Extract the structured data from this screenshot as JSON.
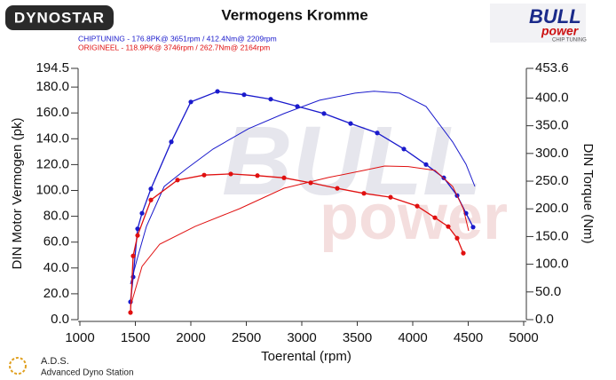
{
  "chart_data": {
    "type": "line",
    "title": "Vermogens Kromme",
    "legend": [
      {
        "text": "CHIPTUNING  - 176.8PK@ 3651rpm / 412.4Nm@ 2209rpm",
        "color": "#1a1acc"
      },
      {
        "text": "ORIGINEEL  - 118.9PK@ 3746rpm / 262.7Nm@ 2164rpm",
        "color": "#e01010"
      }
    ],
    "x_label": "Toerental (rpm)",
    "y_label": "DIN Motor Vermogen (pk)",
    "y2_label": "DIN Torque (Nm)",
    "xlim": [
      1000,
      5000
    ],
    "xticks": [
      1000,
      1500,
      2000,
      2500,
      3000,
      3500,
      4000,
      4500,
      5000
    ],
    "ylim": [
      0,
      194.5
    ],
    "yticks": [
      {
        "value": 0,
        "label": "0.0"
      },
      {
        "value": 20,
        "label": "20.0"
      },
      {
        "value": 40,
        "label": "40.0"
      },
      {
        "value": 60,
        "label": "60.0"
      },
      {
        "value": 80,
        "label": "80.0"
      },
      {
        "value": 100,
        "label": "100.0"
      },
      {
        "value": 120,
        "label": "120.0"
      },
      {
        "value": 140,
        "label": "140.0"
      },
      {
        "value": 160,
        "label": "160.0"
      },
      {
        "value": 180,
        "label": "180.0"
      },
      194.5
    ],
    "y2lim": [
      0,
      453.6
    ],
    "y2ticks": [
      {
        "value": 0,
        "label": "0.0"
      },
      {
        "value": 50,
        "label": "50.0"
      },
      {
        "value": 100,
        "label": "100.0"
      },
      {
        "value": 150,
        "label": "150.0"
      },
      {
        "value": 200,
        "label": "200.0"
      },
      {
        "value": 250,
        "label": "250.0"
      },
      {
        "value": 300,
        "label": "300.0"
      },
      {
        "value": 350,
        "label": "350.0"
      },
      {
        "value": 400,
        "label": "400.0"
      },
      453.6
    ],
    "series": [
      {
        "color": "#1a1acc",
        "axis": "y2",
        "markers": true,
        "x": [
          1456,
          1480,
          1520,
          1560,
          1640,
          1824,
          2000,
          2240,
          2480,
          2720,
          2960,
          3200,
          3440,
          3680,
          3920,
          4120,
          4280,
          4400,
          4480,
          4544
        ],
        "values": [
          32,
          77,
          164,
          192,
          236,
          321,
          393,
          412,
          406,
          398,
          385,
          372,
          354,
          337,
          308,
          280,
          256,
          224,
          192,
          167
        ]
      },
      {
        "color": "#1a1acc",
        "axis": "y",
        "markers": false,
        "x": [
          1456,
          1520,
          1600,
          1760,
          1960,
          2200,
          2520,
          2840,
          3160,
          3480,
          3651,
          3880,
          4120,
          4360,
          4480,
          4560
        ],
        "values": [
          27.5,
          48.1,
          72.2,
          103.1,
          116.8,
          132,
          147.8,
          159.5,
          169.8,
          175.3,
          176.8,
          175.3,
          165,
          137.5,
          120.3,
          103.1
        ]
      },
      {
        "color": "#e01010",
        "axis": "y2",
        "markers": true,
        "x": [
          1456,
          1480,
          1520,
          1640,
          1880,
          2120,
          2360,
          2600,
          2840,
          3080,
          3320,
          3560,
          3800,
          4040,
          4200,
          4320,
          4400,
          4456
        ],
        "values": [
          12.8,
          115,
          152,
          216,
          252,
          261,
          263,
          260,
          256,
          247,
          237,
          228,
          221,
          205,
          184,
          168,
          147,
          120
        ]
      },
      {
        "color": "#e01010",
        "axis": "y",
        "markers": false,
        "x": [
          1456,
          1560,
          1720,
          2040,
          2440,
          2840,
          3240,
          3560,
          3746,
          3960,
          4200,
          4360,
          4456,
          4504
        ],
        "values": [
          10.3,
          41.2,
          58.4,
          72.2,
          85.9,
          101.7,
          110,
          115.5,
          118.9,
          118.5,
          115.5,
          103.1,
          85.9,
          68.7
        ]
      }
    ]
  },
  "branding": {
    "dynostar": "DYNOSTAR",
    "bull": "BULL",
    "power": "power",
    "chip_tuning": "CHIP TUNING",
    "ads": "A.D.S.",
    "ads_full": "Advanced Dyno Station"
  }
}
